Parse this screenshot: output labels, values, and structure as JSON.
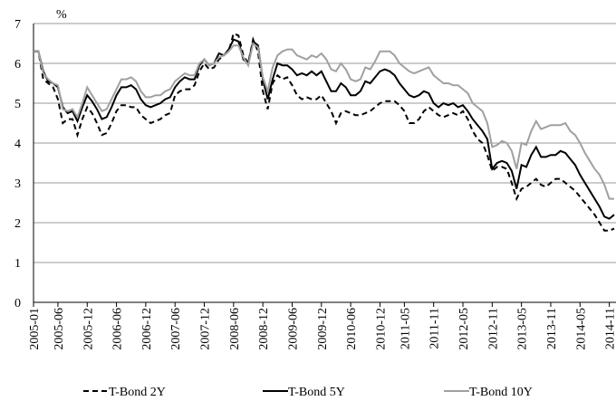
{
  "chart_data": {
    "type": "line",
    "y_label": "%",
    "categories": [
      "2005-01",
      null,
      null,
      null,
      null,
      "2005-06",
      null,
      null,
      null,
      null,
      null,
      "2005-12",
      null,
      null,
      null,
      null,
      null,
      "2006-06",
      null,
      null,
      null,
      null,
      null,
      "2006-12",
      null,
      null,
      null,
      null,
      null,
      "2007-06",
      null,
      null,
      null,
      null,
      null,
      "2007-12",
      null,
      null,
      null,
      null,
      null,
      "2008-06",
      null,
      null,
      null,
      null,
      null,
      "2008-12",
      null,
      null,
      null,
      null,
      null,
      "2009-06",
      null,
      null,
      null,
      null,
      null,
      "2009-12",
      null,
      null,
      null,
      null,
      null,
      "2010-06",
      null,
      null,
      null,
      null,
      null,
      "2010-12",
      null,
      null,
      null,
      null,
      "2011-05",
      null,
      null,
      null,
      null,
      null,
      "2011-11",
      null,
      null,
      null,
      null,
      null,
      "2012-05",
      null,
      null,
      null,
      null,
      null,
      "2012-11",
      null,
      null,
      null,
      null,
      null,
      "2013-05",
      null,
      null,
      null,
      null,
      null,
      "2013-11",
      null,
      null,
      null,
      null,
      null,
      "2014-05",
      null,
      null,
      null,
      null,
      null,
      "2014-11",
      null
    ],
    "series": [
      {
        "name": "T-Bond 2Y",
        "color": "#000000",
        "dash": "dashed",
        "values": [
          6.3,
          6.3,
          5.6,
          5.5,
          5.4,
          5.1,
          4.5,
          4.6,
          4.6,
          4.2,
          4.6,
          4.9,
          4.75,
          4.5,
          4.2,
          4.25,
          4.5,
          4.8,
          4.95,
          4.95,
          4.9,
          4.9,
          4.7,
          4.6,
          4.5,
          4.55,
          4.6,
          4.7,
          4.75,
          5.2,
          5.3,
          5.35,
          5.35,
          5.45,
          5.8,
          6.0,
          5.85,
          5.9,
          6.1,
          6.2,
          6.3,
          6.75,
          6.7,
          6.2,
          6.0,
          6.6,
          6.3,
          5.3,
          4.85,
          5.5,
          5.7,
          5.6,
          5.65,
          5.45,
          5.2,
          5.1,
          5.15,
          5.1,
          5.1,
          5.2,
          5.0,
          4.8,
          4.5,
          4.75,
          4.8,
          4.75,
          4.7,
          4.7,
          4.75,
          4.8,
          4.9,
          5.0,
          5.05,
          5.05,
          5.05,
          4.95,
          4.8,
          4.5,
          4.5,
          4.6,
          4.8,
          4.9,
          4.8,
          4.7,
          4.65,
          4.7,
          4.75,
          4.7,
          4.8,
          4.6,
          4.3,
          4.1,
          4.0,
          3.7,
          3.3,
          3.4,
          3.4,
          3.35,
          3.0,
          2.6,
          2.85,
          2.9,
          3.0,
          3.1,
          2.95,
          2.9,
          3.0,
          3.1,
          3.1,
          3.0,
          2.9,
          2.8,
          2.65,
          2.5,
          2.35,
          2.2,
          2.0,
          1.8,
          1.8,
          1.85
        ]
      },
      {
        "name": "T-Bond 5Y",
        "color": "#000000",
        "dash": "solid",
        "values": [
          6.3,
          6.3,
          5.8,
          5.55,
          5.5,
          5.4,
          4.9,
          4.75,
          4.8,
          4.55,
          4.9,
          5.2,
          5.05,
          4.85,
          4.6,
          4.65,
          4.9,
          5.2,
          5.4,
          5.4,
          5.45,
          5.35,
          5.1,
          4.95,
          4.9,
          4.95,
          5.0,
          5.1,
          5.15,
          5.4,
          5.55,
          5.65,
          5.6,
          5.6,
          5.95,
          6.1,
          5.95,
          6.0,
          6.25,
          6.2,
          6.35,
          6.6,
          6.55,
          6.1,
          6.0,
          6.55,
          6.45,
          5.6,
          5.1,
          5.6,
          6.0,
          5.95,
          5.95,
          5.85,
          5.7,
          5.75,
          5.7,
          5.8,
          5.7,
          5.8,
          5.55,
          5.3,
          5.3,
          5.5,
          5.4,
          5.2,
          5.2,
          5.3,
          5.55,
          5.5,
          5.65,
          5.8,
          5.85,
          5.8,
          5.7,
          5.5,
          5.35,
          5.2,
          5.15,
          5.2,
          5.3,
          5.25,
          5.0,
          4.9,
          5.0,
          4.95,
          5.0,
          4.9,
          4.95,
          4.8,
          4.6,
          4.45,
          4.3,
          4.1,
          3.35,
          3.5,
          3.55,
          3.5,
          3.3,
          2.85,
          3.45,
          3.4,
          3.7,
          3.9,
          3.65,
          3.65,
          3.7,
          3.7,
          3.8,
          3.75,
          3.6,
          3.45,
          3.2,
          3.0,
          2.8,
          2.6,
          2.4,
          2.15,
          2.1,
          2.2
        ]
      },
      {
        "name": "T-Bond 10Y",
        "color": "#a0a0a0",
        "dash": "solid",
        "values": [
          6.3,
          6.3,
          5.75,
          5.6,
          5.5,
          5.45,
          4.85,
          4.8,
          4.85,
          4.65,
          5.0,
          5.4,
          5.2,
          5.0,
          4.8,
          4.85,
          5.1,
          5.35,
          5.6,
          5.6,
          5.65,
          5.55,
          5.3,
          5.15,
          5.15,
          5.2,
          5.2,
          5.3,
          5.35,
          5.55,
          5.65,
          5.75,
          5.7,
          5.7,
          6.0,
          6.1,
          5.95,
          6.0,
          6.15,
          6.2,
          6.3,
          6.45,
          6.45,
          6.15,
          5.95,
          6.5,
          6.4,
          5.65,
          5.3,
          5.9,
          6.2,
          6.3,
          6.35,
          6.35,
          6.2,
          6.15,
          6.1,
          6.2,
          6.15,
          6.25,
          6.1,
          5.85,
          5.8,
          6.0,
          5.85,
          5.6,
          5.55,
          5.6,
          5.9,
          5.85,
          6.05,
          6.3,
          6.3,
          6.3,
          6.2,
          6.0,
          5.9,
          5.8,
          5.75,
          5.8,
          5.85,
          5.9,
          5.7,
          5.6,
          5.5,
          5.5,
          5.45,
          5.45,
          5.35,
          5.25,
          5.0,
          4.9,
          4.8,
          4.5,
          3.9,
          3.95,
          4.05,
          4.0,
          3.8,
          3.35,
          4.0,
          3.95,
          4.3,
          4.55,
          4.35,
          4.4,
          4.45,
          4.45,
          4.45,
          4.5,
          4.3,
          4.2,
          4.0,
          3.75,
          3.55,
          3.35,
          3.2,
          2.95,
          2.6,
          2.6
        ]
      }
    ],
    "ylim": [
      0,
      7
    ],
    "yticks": [
      0,
      1,
      2,
      3,
      4,
      5,
      6,
      7
    ],
    "grid": true,
    "legend": "bottom"
  }
}
